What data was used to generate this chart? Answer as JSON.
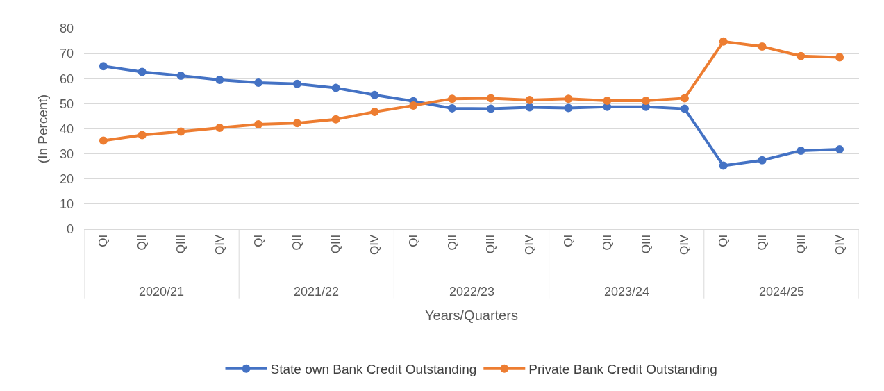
{
  "chart_data": {
    "type": "line",
    "xlabel": "Years/Quarters",
    "ylabel": "(In Percent)",
    "categories": [
      "QI",
      "QII",
      "QIII",
      "QIV",
      "QI",
      "QII",
      "QIII",
      "QIV",
      "QI",
      "QII",
      "QIII",
      "QIV",
      "QI",
      "QII",
      "QIII",
      "QIV",
      "QI",
      "QII",
      "QIII",
      "QIV"
    ],
    "annotations": [
      "2020/21",
      "2021/22",
      "2022/23",
      "2023/24",
      "2024/25"
    ],
    "series": [
      {
        "name": "State own Bank Credit Outstanding",
        "color": "#4472c4",
        "values": [
          65,
          62.7,
          61.2,
          59.5,
          58.4,
          57.9,
          56.3,
          53.5,
          51,
          48.2,
          48,
          48.6,
          48.3,
          48.8,
          48.8,
          48,
          25.3,
          27.5,
          31.3,
          31.8
        ]
      },
      {
        "name": "Private Bank Credit Outstanding",
        "color": "#ed7d31",
        "values": [
          35.3,
          37.5,
          38.9,
          40.4,
          41.8,
          42.3,
          43.8,
          46.8,
          49.3,
          52,
          52.2,
          51.5,
          52,
          51.2,
          51.2,
          52.2,
          74.8,
          72.8,
          69,
          68.5
        ]
      }
    ],
    "ylim": [
      0,
      80
    ],
    "yticks": [
      0,
      10,
      20,
      30,
      40,
      50,
      60,
      70,
      80
    ],
    "grid": "y",
    "legend": "bottom",
    "marker": "circle",
    "line_style": "solid"
  }
}
